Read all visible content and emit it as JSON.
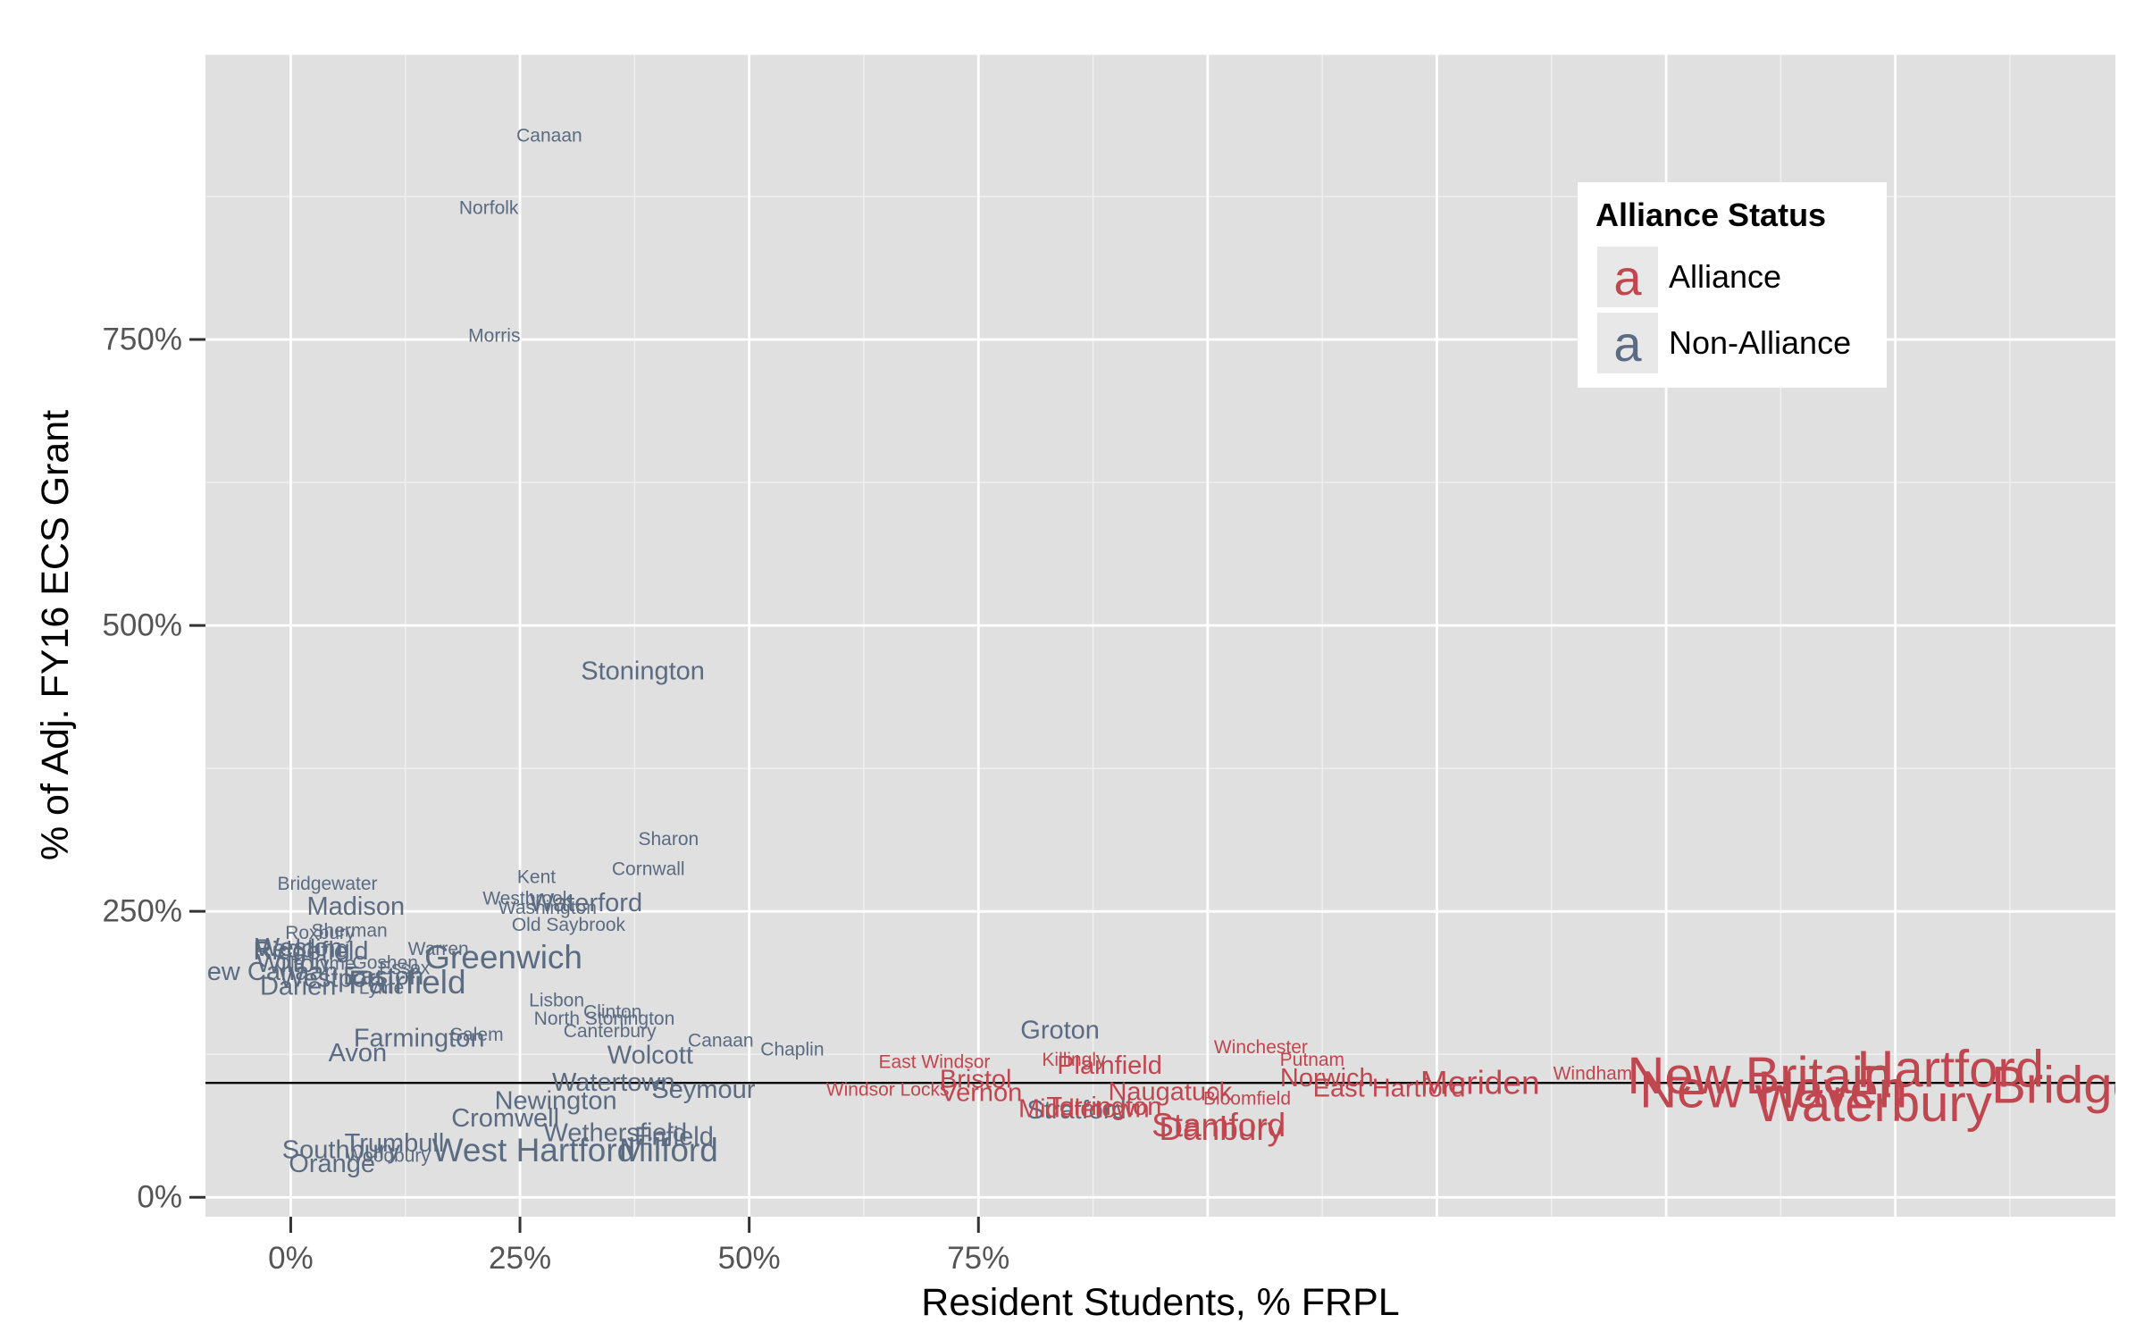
{
  "chart_data": {
    "type": "scatter",
    "title": "",
    "xlabel": "Resident Students, % FRPL",
    "ylabel": "% of Adj. FY16 ECS Grant",
    "xlim": [
      -0.093,
      1.99
    ],
    "ylim": [
      -0.17,
      10.0
    ],
    "x_ticks": [
      {
        "value": 0,
        "label": "0%"
      },
      {
        "value": 0.25,
        "label": "25%"
      },
      {
        "value": 0.5,
        "label": "50%"
      },
      {
        "value": 0.75,
        "label": "75%"
      }
    ],
    "y_ticks": [
      {
        "value": 0,
        "label": "0%"
      },
      {
        "value": 2.5,
        "label": "250%"
      },
      {
        "value": 5,
        "label": "500%"
      },
      {
        "value": 7.5,
        "label": "750%"
      }
    ],
    "reference_line_y": 1.0,
    "legend": {
      "title": "Alliance Status",
      "position": "top-right",
      "glyph": "a",
      "entries": [
        {
          "label": "Alliance",
          "color": "#c0474f"
        },
        {
          "label": "Non-Alliance",
          "color": "#5b6b82"
        }
      ]
    },
    "colors": {
      "Alliance": "#c0474f",
      "Non-Alliance": "#5b6b82"
    },
    "points": [
      {
        "name": "Canaan",
        "x": 0.282,
        "y": 9.28,
        "group": "Non-Alliance",
        "size": 1
      },
      {
        "name": "Norfolk",
        "x": 0.216,
        "y": 8.65,
        "group": "Non-Alliance",
        "size": 1
      },
      {
        "name": "Morris",
        "x": 0.222,
        "y": 7.53,
        "group": "Non-Alliance",
        "size": 1
      },
      {
        "name": "Stonington",
        "x": 0.384,
        "y": 4.6,
        "group": "Non-Alliance",
        "size": 2
      },
      {
        "name": "Sharon",
        "x": 0.412,
        "y": 3.13,
        "group": "Non-Alliance",
        "size": 1
      },
      {
        "name": "Cornwall",
        "x": 0.39,
        "y": 2.87,
        "group": "Non-Alliance",
        "size": 1
      },
      {
        "name": "Bridgewater",
        "x": 0.04,
        "y": 2.74,
        "group": "Non-Alliance",
        "size": 1
      },
      {
        "name": "Kent",
        "x": 0.268,
        "y": 2.8,
        "group": "Non-Alliance",
        "size": 1
      },
      {
        "name": "Westbrook",
        "x": 0.258,
        "y": 2.61,
        "group": "Non-Alliance",
        "size": 1
      },
      {
        "name": "Washington",
        "x": 0.28,
        "y": 2.53,
        "group": "Non-Alliance",
        "size": 1
      },
      {
        "name": "Waterford",
        "x": 0.322,
        "y": 2.57,
        "group": "Non-Alliance",
        "size": 2
      },
      {
        "name": "Madison",
        "x": 0.071,
        "y": 2.54,
        "group": "Non-Alliance",
        "size": 2
      },
      {
        "name": "Old Saybrook",
        "x": 0.303,
        "y": 2.38,
        "group": "Non-Alliance",
        "size": 1
      },
      {
        "name": "Roxbury",
        "x": 0.032,
        "y": 2.31,
        "group": "Non-Alliance",
        "size": 1
      },
      {
        "name": "Sherman",
        "x": 0.064,
        "y": 2.33,
        "group": "Non-Alliance",
        "size": 1
      },
      {
        "name": "Redding",
        "x": 0.012,
        "y": 2.17,
        "group": "Non-Alliance",
        "size": 2
      },
      {
        "name": "Weston",
        "x": 0.009,
        "y": 2.18,
        "group": "Non-Alliance",
        "size": 2
      },
      {
        "name": "Ridgefield",
        "x": 0.022,
        "y": 2.15,
        "group": "Non-Alliance",
        "size": 2
      },
      {
        "name": "Warren",
        "x": 0.161,
        "y": 2.17,
        "group": "Non-Alliance",
        "size": 1
      },
      {
        "name": "Greenwich",
        "x": 0.232,
        "y": 2.1,
        "group": "Non-Alliance",
        "size": 3
      },
      {
        "name": "Wilton",
        "x": 0.002,
        "y": 2.04,
        "group": "Non-Alliance",
        "size": 2
      },
      {
        "name": "Old Lyme",
        "x": 0.027,
        "y": 2.04,
        "group": "Non-Alliance",
        "size": 1
      },
      {
        "name": "Goshen",
        "x": 0.103,
        "y": 2.05,
        "group": "Non-Alliance",
        "size": 1
      },
      {
        "name": "Essex",
        "x": 0.124,
        "y": 2.0,
        "group": "Non-Alliance",
        "size": 1
      },
      {
        "name": "New Canaan",
        "x": -0.03,
        "y": 1.97,
        "group": "Non-Alliance",
        "size": 2
      },
      {
        "name": "Westport",
        "x": 0.044,
        "y": 1.91,
        "group": "Non-Alliance",
        "size": 2
      },
      {
        "name": "Easton",
        "x": 0.101,
        "y": 1.93,
        "group": "Non-Alliance",
        "size": 2
      },
      {
        "name": "Fairfield",
        "x": 0.127,
        "y": 1.88,
        "group": "Non-Alliance",
        "size": 3
      },
      {
        "name": "Darien",
        "x": 0.008,
        "y": 1.84,
        "group": "Non-Alliance",
        "size": 2
      },
      {
        "name": "Lyme",
        "x": 0.099,
        "y": 1.83,
        "group": "Non-Alliance",
        "size": 1
      },
      {
        "name": "Lisbon",
        "x": 0.29,
        "y": 1.72,
        "group": "Non-Alliance",
        "size": 1
      },
      {
        "name": "Clinton",
        "x": 0.351,
        "y": 1.62,
        "group": "Non-Alliance",
        "size": 1
      },
      {
        "name": "North Stonington",
        "x": 0.342,
        "y": 1.56,
        "group": "Non-Alliance",
        "size": 1
      },
      {
        "name": "Canterbury",
        "x": 0.348,
        "y": 1.45,
        "group": "Non-Alliance",
        "size": 1
      },
      {
        "name": "Groton",
        "x": 0.839,
        "y": 1.46,
        "group": "Non-Alliance",
        "size": 2
      },
      {
        "name": "Farmington",
        "x": 0.14,
        "y": 1.39,
        "group": "Non-Alliance",
        "size": 2
      },
      {
        "name": "Salem",
        "x": 0.203,
        "y": 1.42,
        "group": "Non-Alliance",
        "size": 1
      },
      {
        "name": "Canaan",
        "x": 0.469,
        "y": 1.37,
        "group": "Non-Alliance",
        "size": 1
      },
      {
        "name": "Chaplin",
        "x": 0.547,
        "y": 1.29,
        "group": "Non-Alliance",
        "size": 1
      },
      {
        "name": "Wolcott",
        "x": 0.392,
        "y": 1.24,
        "group": "Non-Alliance",
        "size": 2
      },
      {
        "name": "Avon",
        "x": 0.073,
        "y": 1.26,
        "group": "Non-Alliance",
        "size": 2
      },
      {
        "name": "Seymour",
        "x": 0.45,
        "y": 0.94,
        "group": "Non-Alliance",
        "size": 2
      },
      {
        "name": "Watertown",
        "x": 0.352,
        "y": 1.0,
        "group": "Non-Alliance",
        "size": 2
      },
      {
        "name": "Newington",
        "x": 0.289,
        "y": 0.84,
        "group": "Non-Alliance",
        "size": 2
      },
      {
        "name": "Cromwell",
        "x": 0.234,
        "y": 0.69,
        "group": "Non-Alliance",
        "size": 2
      },
      {
        "name": "Wethersfield",
        "x": 0.354,
        "y": 0.56,
        "group": "Non-Alliance",
        "size": 2
      },
      {
        "name": "Enfield",
        "x": 0.418,
        "y": 0.53,
        "group": "Non-Alliance",
        "size": 2
      },
      {
        "name": "Southbury",
        "x": 0.055,
        "y": 0.41,
        "group": "Non-Alliance",
        "size": 2
      },
      {
        "name": "Woodbury",
        "x": 0.106,
        "y": 0.36,
        "group": "Non-Alliance",
        "size": 1
      },
      {
        "name": "Orange",
        "x": 0.045,
        "y": 0.29,
        "group": "Non-Alliance",
        "size": 2
      },
      {
        "name": "Trumbull",
        "x": 0.113,
        "y": 0.47,
        "group": "Non-Alliance",
        "size": 2
      },
      {
        "name": "West Hartford",
        "x": 0.265,
        "y": 0.41,
        "group": "Non-Alliance",
        "size": 3
      },
      {
        "name": "Milford",
        "x": 0.412,
        "y": 0.41,
        "group": "Non-Alliance",
        "size": 3
      },
      {
        "name": "Stratford",
        "x": 0.857,
        "y": 0.76,
        "group": "Non-Alliance",
        "size": 2
      },
      {
        "name": "Winchester",
        "x": 1.058,
        "y": 1.31,
        "group": "Alliance",
        "size": 1
      },
      {
        "name": "Putnam",
        "x": 1.114,
        "y": 1.2,
        "group": "Alliance",
        "size": 1
      },
      {
        "name": "East Windsor",
        "x": 0.702,
        "y": 1.18,
        "group": "Alliance",
        "size": 1
      },
      {
        "name": "Killingly",
        "x": 0.854,
        "y": 1.2,
        "group": "Alliance",
        "size": 1
      },
      {
        "name": "Plainfield",
        "x": 0.893,
        "y": 1.15,
        "group": "Alliance",
        "size": 2
      },
      {
        "name": "Bristol",
        "x": 0.747,
        "y": 1.03,
        "group": "Alliance",
        "size": 2
      },
      {
        "name": "Norwich",
        "x": 1.13,
        "y": 1.04,
        "group": "Alliance",
        "size": 2
      },
      {
        "name": "East Hartford",
        "x": 1.198,
        "y": 0.95,
        "group": "Alliance",
        "size": 2
      },
      {
        "name": "Meriden",
        "x": 1.297,
        "y": 1.0,
        "group": "Alliance",
        "size": 3
      },
      {
        "name": "Windham",
        "x": 1.42,
        "y": 1.08,
        "group": "Alliance",
        "size": 1
      },
      {
        "name": "Vernon",
        "x": 0.753,
        "y": 0.91,
        "group": "Alliance",
        "size": 2
      },
      {
        "name": "Windsor Locks",
        "x": 0.651,
        "y": 0.94,
        "group": "Alliance",
        "size": 1
      },
      {
        "name": "Naugatuck",
        "x": 0.959,
        "y": 0.92,
        "group": "Alliance",
        "size": 2
      },
      {
        "name": "Torrington",
        "x": 0.887,
        "y": 0.79,
        "group": "Alliance",
        "size": 2
      },
      {
        "name": "Middletown",
        "x": 0.865,
        "y": 0.77,
        "group": "Alliance",
        "size": 2
      },
      {
        "name": "Stamford",
        "x": 1.012,
        "y": 0.63,
        "group": "Alliance",
        "size": 3
      },
      {
        "name": "Danbury",
        "x": 1.015,
        "y": 0.6,
        "group": "Alliance",
        "size": 3
      },
      {
        "name": "Bloomfield",
        "x": 1.043,
        "y": 0.86,
        "group": "Alliance",
        "size": 1
      },
      {
        "name": "New Britain",
        "x": 1.602,
        "y": 1.06,
        "group": "Alliance",
        "size": 4
      },
      {
        "name": "New Haven",
        "x": 1.617,
        "y": 0.94,
        "group": "Alliance",
        "size": 4
      },
      {
        "name": "Waterbury",
        "x": 1.726,
        "y": 0.82,
        "group": "Alliance",
        "size": 4
      },
      {
        "name": "Hartford",
        "x": 1.81,
        "y": 1.12,
        "group": "Alliance",
        "size": 4
      },
      {
        "name": "Bridgeport",
        "x": 1.985,
        "y": 0.98,
        "group": "Alliance",
        "size": 4
      }
    ]
  }
}
